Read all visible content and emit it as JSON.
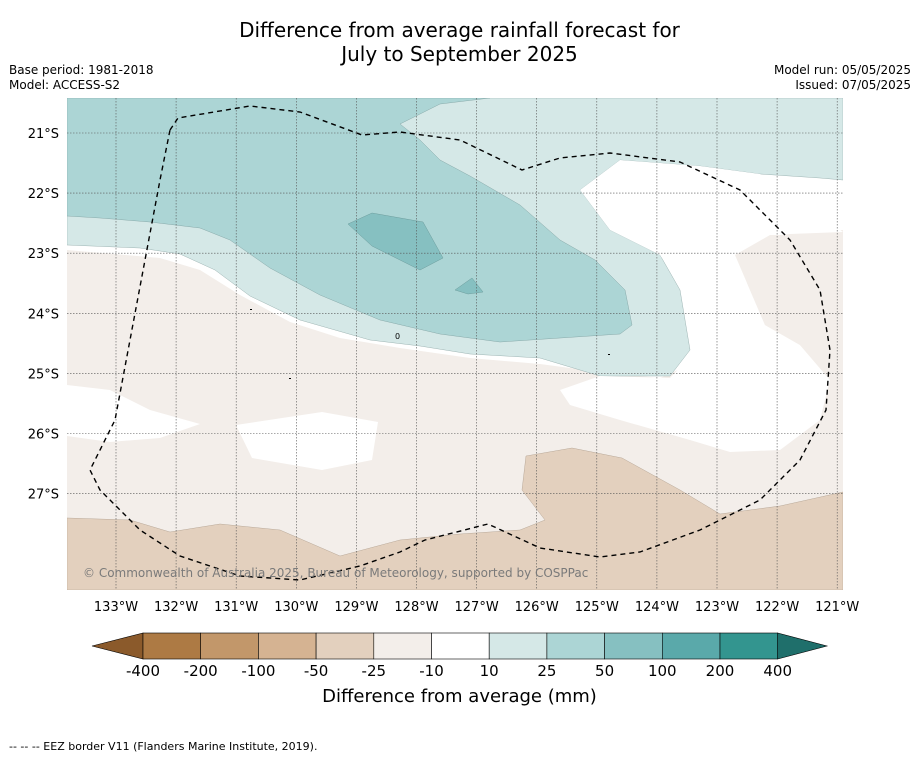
{
  "title": {
    "line1": "Difference from average rainfall forecast for",
    "line2": "July to September 2025"
  },
  "meta_left": {
    "base_period": "Base period: 1981-2018",
    "model": "Model: ACCESS-S2"
  },
  "meta_right": {
    "model_run": "Model run: 05/05/2025",
    "issued": "Issued: 07/05/2025"
  },
  "map": {
    "lon_labels": [
      "133°W",
      "132°W",
      "131°W",
      "130°W",
      "129°W",
      "128°W",
      "127°W",
      "126°W",
      "125°W",
      "124°W",
      "123°W",
      "122°W",
      "121°W"
    ],
    "lat_labels": [
      "21°S",
      "22°S",
      "23°S",
      "24°S",
      "25°S",
      "26°S",
      "27°S"
    ],
    "copyright": "© Commonwealth of Australia 2025, Bureau of Meteorology, supported by COSPPac",
    "contour_labels": [
      "0"
    ]
  },
  "colorbar": {
    "ticks": [
      "-400",
      "-200",
      "-100",
      "-50",
      "-25",
      "-10",
      "10",
      "25",
      "50",
      "100",
      "200",
      "400"
    ],
    "colors": [
      "#ad7a44",
      "#c2976a",
      "#d5b392",
      "#e3d0be",
      "#f3eeea",
      "#ffffff",
      "#d5e8e7",
      "#acd5d5",
      "#86c0c1",
      "#5aa9aa",
      "#33958f"
    ],
    "ext_low": "#8b5a2b",
    "ext_high": "#1f6f6b",
    "label": "Difference from average (mm)"
  },
  "footer": "--  --  -- EEZ border V11 (Flanders Marine Institute, 2019)."
}
